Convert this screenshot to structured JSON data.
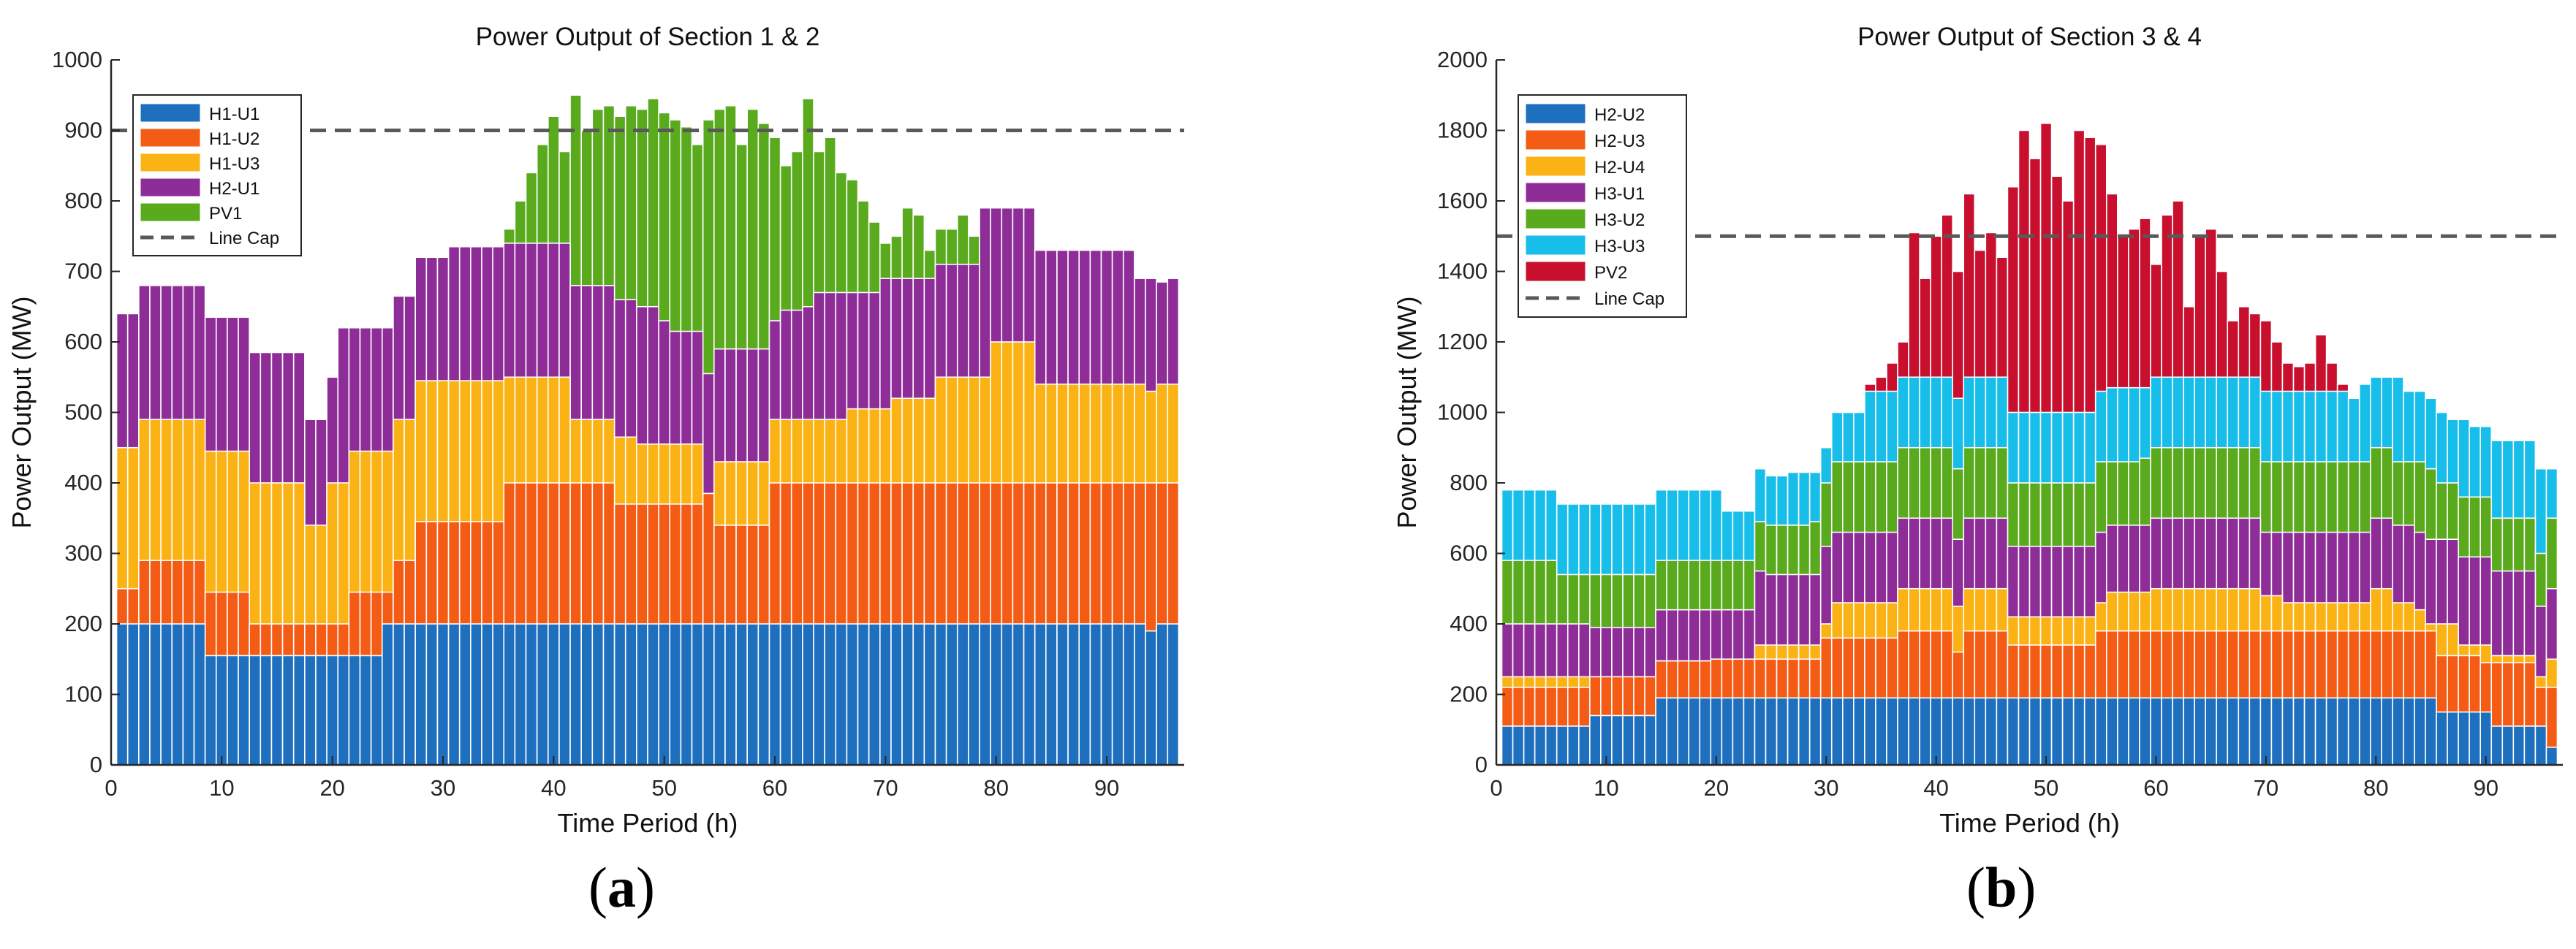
{
  "panels": [
    {
      "label_open": "(",
      "label_letter": "a",
      "label_close": ")"
    },
    {
      "label_open": "(",
      "label_letter": "b",
      "label_close": ")"
    }
  ],
  "chart_data": [
    {
      "type": "bar",
      "stacked": true,
      "title": "Power Output of Section 1 & 2",
      "xlabel": "Time Period (h)",
      "ylabel": "Power Output (MW)",
      "xlim": [
        0,
        97
      ],
      "ylim": [
        0,
        1000
      ],
      "xticks": [
        0,
        10,
        20,
        30,
        40,
        50,
        60,
        70,
        80,
        90
      ],
      "yticks": [
        0,
        100,
        200,
        300,
        400,
        500,
        600,
        700,
        800,
        900,
        1000
      ],
      "legend_position": "top-left",
      "line_cap": {
        "name": "Line Cap",
        "value": 900,
        "color": "#595959"
      },
      "colors": {
        "H1-U1": "#1F6FBF",
        "H1-U2": "#F45B14",
        "H1-U3": "#FBB214",
        "H2-U1": "#8E2D98",
        "PV1": "#5AAA1E"
      },
      "stack_totals": {
        "H1-U1": [
          200,
          200,
          200,
          200,
          200,
          200,
          200,
          200,
          155,
          155,
          155,
          155,
          155,
          155,
          155,
          155,
          155,
          155,
          155,
          155,
          155,
          155,
          155,
          155,
          200,
          200,
          200,
          200,
          200,
          200,
          200,
          200,
          200,
          200,
          200,
          200,
          200,
          200,
          200,
          200,
          200,
          200,
          200,
          200,
          200,
          200,
          200,
          200,
          200,
          200,
          200,
          200,
          200,
          200,
          200,
          200,
          200,
          200,
          200,
          200,
          200,
          200,
          200,
          200,
          200,
          200,
          200,
          200,
          200,
          200,
          200,
          200,
          200,
          200,
          200,
          200,
          200,
          200,
          200,
          200,
          200,
          200,
          200,
          200,
          200,
          200,
          200,
          200,
          200,
          200,
          200,
          200,
          200,
          190,
          200,
          200
        ],
        "H1-U2": [
          250,
          250,
          290,
          290,
          290,
          290,
          290,
          290,
          245,
          245,
          245,
          245,
          200,
          200,
          200,
          200,
          200,
          200,
          200,
          200,
          200,
          245,
          245,
          245,
          245,
          290,
          290,
          345,
          345,
          345,
          345,
          345,
          345,
          345,
          345,
          400,
          400,
          400,
          400,
          400,
          400,
          400,
          400,
          400,
          400,
          370,
          370,
          370,
          370,
          370,
          370,
          370,
          370,
          385,
          340,
          340,
          340,
          340,
          340,
          400,
          400,
          400,
          400,
          400,
          400,
          400,
          400,
          400,
          400,
          400,
          400,
          400,
          400,
          400,
          400,
          400,
          400,
          400,
          400,
          400,
          400,
          400,
          400,
          400,
          400,
          400,
          400,
          400,
          400,
          400,
          400,
          400,
          400,
          400,
          400,
          400
        ],
        "H1-U3": [
          450,
          450,
          490,
          490,
          490,
          490,
          490,
          490,
          445,
          445,
          445,
          445,
          400,
          400,
          400,
          400,
          400,
          340,
          340,
          400,
          400,
          445,
          445,
          445,
          445,
          490,
          490,
          545,
          545,
          545,
          545,
          545,
          545,
          545,
          545,
          550,
          550,
          550,
          550,
          550,
          550,
          490,
          490,
          490,
          490,
          465,
          465,
          455,
          455,
          455,
          455,
          455,
          455,
          385,
          430,
          430,
          430,
          430,
          430,
          490,
          490,
          490,
          490,
          490,
          490,
          490,
          505,
          505,
          505,
          505,
          520,
          520,
          520,
          520,
          550,
          550,
          550,
          550,
          550,
          600,
          600,
          600,
          600,
          540,
          540,
          540,
          540,
          540,
          540,
          540,
          540,
          540,
          540,
          530,
          540,
          540
        ],
        "H2-U1": [
          640,
          640,
          680,
          680,
          680,
          680,
          680,
          680,
          635,
          635,
          635,
          635,
          585,
          585,
          585,
          585,
          585,
          490,
          490,
          550,
          620,
          620,
          620,
          620,
          620,
          665,
          665,
          720,
          720,
          720,
          735,
          735,
          735,
          735,
          735,
          740,
          740,
          740,
          740,
          740,
          740,
          680,
          680,
          680,
          680,
          660,
          660,
          650,
          650,
          630,
          615,
          615,
          615,
          555,
          590,
          590,
          590,
          590,
          590,
          630,
          645,
          645,
          650,
          670,
          670,
          670,
          670,
          670,
          670,
          690,
          690,
          690,
          690,
          690,
          710,
          710,
          710,
          710,
          790,
          790,
          790,
          790,
          790,
          730,
          730,
          730,
          730,
          730,
          730,
          730,
          730,
          730,
          690,
          690,
          685,
          690
        ],
        "PV1": [
          640,
          640,
          680,
          680,
          680,
          680,
          680,
          680,
          635,
          635,
          635,
          635,
          585,
          585,
          585,
          585,
          585,
          490,
          490,
          550,
          620,
          620,
          620,
          620,
          620,
          665,
          665,
          720,
          720,
          720,
          735,
          735,
          735,
          735,
          735,
          760,
          800,
          840,
          880,
          920,
          870,
          950,
          900,
          930,
          935,
          920,
          935,
          930,
          945,
          925,
          915,
          905,
          880,
          915,
          930,
          935,
          880,
          930,
          910,
          890,
          850,
          870,
          945,
          870,
          890,
          840,
          830,
          800,
          770,
          740,
          750,
          790,
          780,
          730,
          760,
          760,
          780,
          750,
          740,
          790,
          790,
          790,
          790,
          730,
          730,
          730,
          730,
          730,
          730,
          730,
          730,
          730,
          690,
          690,
          685,
          690
        ]
      }
    },
    {
      "type": "bar",
      "stacked": true,
      "title": "Power Output of Section 3 & 4",
      "xlabel": "Time Period (h)",
      "ylabel": "Power Output (MW)",
      "xlim": [
        0,
        97
      ],
      "ylim": [
        0,
        2000
      ],
      "xticks": [
        0,
        10,
        20,
        30,
        40,
        50,
        60,
        70,
        80,
        90
      ],
      "yticks": [
        0,
        200,
        400,
        600,
        800,
        1000,
        1200,
        1400,
        1600,
        1800,
        2000
      ],
      "legend_position": "top-left",
      "line_cap": {
        "name": "Line Cap",
        "value": 1500,
        "color": "#595959"
      },
      "colors": {
        "H2-U2": "#1F6FBF",
        "H2-U3": "#F45B14",
        "H2-U4": "#FBB214",
        "H3-U1": "#8E2D98",
        "H3-U2": "#5AAA1E",
        "H3-U3": "#18BEEA",
        "PV2": "#C8102E"
      },
      "stack_totals": {
        "H2-U2": [
          110,
          110,
          110,
          110,
          110,
          110,
          110,
          110,
          140,
          140,
          140,
          140,
          140,
          140,
          190,
          190,
          190,
          190,
          190,
          190,
          190,
          190,
          190,
          190,
          190,
          190,
          190,
          190,
          190,
          190,
          190,
          190,
          190,
          190,
          190,
          190,
          190,
          190,
          190,
          190,
          190,
          190,
          190,
          190,
          190,
          190,
          190,
          190,
          190,
          190,
          190,
          190,
          190,
          190,
          190,
          190,
          190,
          190,
          190,
          190,
          190,
          190,
          190,
          190,
          190,
          190,
          190,
          190,
          190,
          190,
          190,
          190,
          190,
          190,
          190,
          190,
          190,
          190,
          190,
          190,
          190,
          190,
          190,
          190,
          190,
          150,
          150,
          150,
          150,
          150,
          110,
          110,
          110,
          110,
          110,
          50
        ],
        "H2-U3": [
          220,
          220,
          220,
          220,
          220,
          220,
          220,
          220,
          250,
          250,
          250,
          250,
          250,
          250,
          295,
          295,
          295,
          295,
          295,
          300,
          300,
          300,
          300,
          300,
          300,
          300,
          300,
          300,
          300,
          360,
          360,
          360,
          360,
          360,
          360,
          360,
          380,
          380,
          380,
          380,
          380,
          320,
          380,
          380,
          380,
          380,
          340,
          340,
          340,
          340,
          340,
          340,
          340,
          340,
          380,
          380,
          380,
          380,
          380,
          380,
          380,
          380,
          380,
          380,
          380,
          380,
          380,
          380,
          380,
          380,
          380,
          380,
          380,
          380,
          380,
          380,
          380,
          380,
          380,
          380,
          380,
          380,
          380,
          380,
          380,
          310,
          310,
          310,
          310,
          290,
          290,
          290,
          290,
          290,
          220,
          220
        ],
        "H2-U4": [
          250,
          250,
          250,
          250,
          250,
          250,
          250,
          250,
          250,
          250,
          250,
          250,
          250,
          250,
          295,
          295,
          295,
          295,
          295,
          300,
          300,
          300,
          300,
          340,
          340,
          340,
          340,
          340,
          340,
          400,
          460,
          460,
          460,
          460,
          460,
          460,
          500,
          500,
          500,
          500,
          500,
          450,
          500,
          500,
          500,
          500,
          420,
          420,
          420,
          420,
          420,
          420,
          420,
          420,
          460,
          490,
          490,
          490,
          490,
          500,
          500,
          500,
          500,
          500,
          500,
          500,
          500,
          500,
          500,
          480,
          480,
          460,
          460,
          460,
          460,
          460,
          460,
          460,
          460,
          500,
          500,
          460,
          460,
          440,
          400,
          400,
          400,
          340,
          340,
          340,
          310,
          310,
          310,
          310,
          250,
          300
        ],
        "H3-U1": [
          400,
          400,
          400,
          400,
          400,
          400,
          400,
          400,
          390,
          390,
          390,
          390,
          390,
          390,
          440,
          440,
          440,
          440,
          440,
          440,
          440,
          440,
          440,
          550,
          540,
          540,
          540,
          540,
          540,
          620,
          660,
          660,
          660,
          660,
          660,
          660,
          700,
          700,
          700,
          700,
          700,
          640,
          700,
          700,
          700,
          700,
          620,
          620,
          620,
          620,
          620,
          620,
          620,
          620,
          660,
          680,
          680,
          680,
          680,
          700,
          700,
          700,
          700,
          700,
          700,
          700,
          700,
          700,
          700,
          660,
          660,
          660,
          660,
          660,
          660,
          660,
          660,
          660,
          660,
          700,
          700,
          680,
          680,
          660,
          640,
          640,
          640,
          590,
          590,
          590,
          550,
          550,
          550,
          550,
          450,
          500
        ],
        "H3-U2": [
          580,
          580,
          580,
          580,
          580,
          540,
          540,
          540,
          540,
          540,
          540,
          540,
          540,
          540,
          580,
          580,
          580,
          580,
          580,
          580,
          580,
          580,
          580,
          690,
          680,
          680,
          680,
          680,
          690,
          800,
          860,
          860,
          860,
          860,
          860,
          860,
          900,
          900,
          900,
          900,
          900,
          840,
          900,
          900,
          900,
          900,
          800,
          800,
          800,
          800,
          800,
          800,
          800,
          800,
          860,
          860,
          860,
          860,
          870,
          900,
          900,
          900,
          900,
          900,
          900,
          900,
          900,
          900,
          900,
          860,
          860,
          860,
          860,
          860,
          860,
          860,
          860,
          860,
          860,
          900,
          900,
          860,
          860,
          860,
          840,
          800,
          800,
          760,
          760,
          760,
          700,
          700,
          700,
          700,
          600,
          700
        ],
        "H3-U3": [
          780,
          780,
          780,
          780,
          780,
          740,
          740,
          740,
          740,
          740,
          740,
          740,
          740,
          740,
          780,
          780,
          780,
          780,
          780,
          780,
          720,
          720,
          720,
          840,
          820,
          820,
          830,
          830,
          830,
          900,
          1000,
          1000,
          1000,
          1060,
          1060,
          1060,
          1100,
          1100,
          1100,
          1100,
          1100,
          1040,
          1100,
          1100,
          1100,
          1100,
          1000,
          1000,
          1000,
          1000,
          1000,
          1000,
          1000,
          1000,
          1060,
          1070,
          1070,
          1070,
          1070,
          1100,
          1100,
          1100,
          1100,
          1100,
          1100,
          1100,
          1100,
          1100,
          1100,
          1060,
          1060,
          1060,
          1060,
          1060,
          1060,
          1060,
          1060,
          1040,
          1080,
          1100,
          1100,
          1100,
          1060,
          1060,
          1040,
          1000,
          980,
          980,
          960,
          960,
          920,
          920,
          920,
          920,
          840,
          840
        ],
        "PV2": [
          780,
          780,
          780,
          780,
          780,
          740,
          740,
          740,
          740,
          740,
          740,
          740,
          740,
          740,
          780,
          780,
          780,
          780,
          780,
          780,
          720,
          720,
          720,
          840,
          820,
          820,
          830,
          830,
          830,
          900,
          1000,
          1000,
          1000,
          1080,
          1100,
          1140,
          1200,
          1510,
          1380,
          1500,
          1560,
          1400,
          1620,
          1460,
          1510,
          1440,
          1640,
          1800,
          1720,
          1820,
          1670,
          1600,
          1800,
          1780,
          1760,
          1620,
          1500,
          1520,
          1550,
          1420,
          1560,
          1600,
          1300,
          1500,
          1520,
          1400,
          1260,
          1300,
          1280,
          1260,
          1200,
          1140,
          1130,
          1140,
          1220,
          1140,
          1080,
          1040,
          1080,
          1100,
          1100,
          1100,
          1060,
          1060,
          1040,
          1000,
          980,
          980,
          960,
          960,
          920,
          920,
          920,
          920,
          840,
          840
        ]
      }
    }
  ]
}
